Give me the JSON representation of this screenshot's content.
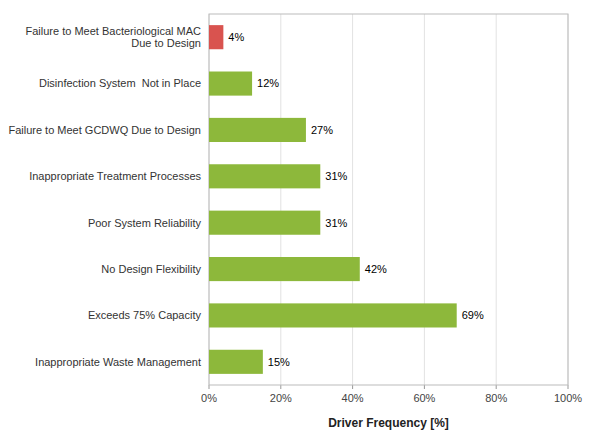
{
  "chart_data": {
    "type": "bar",
    "orientation": "horizontal",
    "categories": [
      "Inappropriate Waste Management",
      "Exceeds 75% Capacity",
      "No Design Flexibility",
      "Poor System Reliability",
      "Inappropriate Treatment Processes",
      "Failure to Meet GCDWQ Due to Design",
      "Disinfection System  Not in Place",
      "Failure to Meet Bacteriological MAC\nDue to Design"
    ],
    "values": [
      15,
      69,
      42,
      31,
      31,
      27,
      12,
      4
    ],
    "value_labels": [
      "15%",
      "69%",
      "42%",
      "31%",
      "31%",
      "27%",
      "12%",
      "4%"
    ],
    "colors": [
      "#8db83b",
      "#8db83b",
      "#8db83b",
      "#8db83b",
      "#8db83b",
      "#8db83b",
      "#8db83b",
      "#d9534f"
    ],
    "xlabel": "Driver Frequency [%]",
    "xlim": [
      0,
      100
    ],
    "xticks": [
      {
        "value": 0,
        "label": "0%"
      },
      {
        "value": 20,
        "label": "20%"
      },
      {
        "value": 40,
        "label": "40%"
      },
      {
        "value": 60,
        "label": "60%"
      },
      {
        "value": 80,
        "label": "80%"
      },
      {
        "value": 100,
        "label": "100%"
      }
    ],
    "grid": true,
    "data_labels": true
  }
}
